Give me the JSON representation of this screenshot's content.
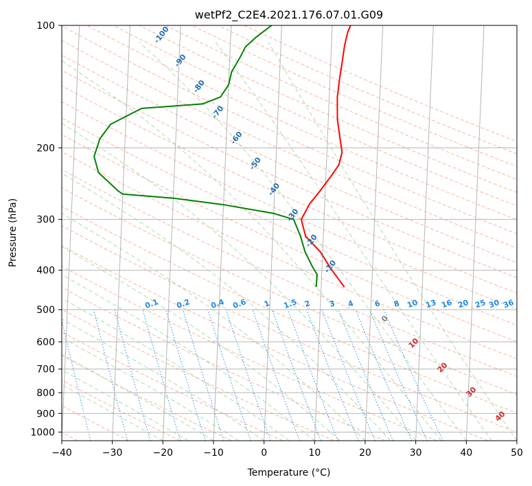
{
  "chart_data": {
    "type": "line",
    "title": "wetPf2_C2E4.2021.176.07.01.G09",
    "xlabel": "Temperature (°C)",
    "ylabel": "Pressure (hPa)",
    "xlim": [
      -40,
      50
    ],
    "ylim": [
      1050,
      100
    ],
    "x_ticks": [
      -40,
      -30,
      -20,
      -10,
      0,
      10,
      20,
      30,
      40,
      50
    ],
    "y_ticks": [
      100,
      200,
      300,
      400,
      500,
      600,
      700,
      800,
      900,
      1000
    ],
    "grid": true,
    "series": [
      {
        "name": "temperature",
        "color": "#ff0000",
        "points": [
          [
            14.6,
            440
          ],
          [
            12,
            400
          ],
          [
            9.5,
            360
          ],
          [
            6.5,
            330
          ],
          [
            5.5,
            300
          ],
          [
            7,
            275
          ],
          [
            9,
            255
          ],
          [
            11,
            235
          ],
          [
            12.5,
            220
          ],
          [
            13,
            205
          ],
          [
            12.5,
            190
          ],
          [
            11.8,
            170
          ],
          [
            11.6,
            150
          ],
          [
            11.9,
            135
          ],
          [
            12.3,
            122
          ],
          [
            12.6,
            112
          ],
          [
            13.1,
            104
          ],
          [
            13.6,
            100
          ]
        ]
      },
      {
        "name": "dewpoint",
        "color": "#008000",
        "points": [
          [
            9,
            440
          ],
          [
            9.1,
            410
          ],
          [
            8,
            390
          ],
          [
            6.5,
            360
          ],
          [
            5.5,
            330
          ],
          [
            4,
            300
          ],
          [
            0,
            290
          ],
          [
            -10,
            276
          ],
          [
            -20,
            266
          ],
          [
            -30,
            260
          ],
          [
            -31,
            255
          ],
          [
            -35,
            230
          ],
          [
            -36,
            210
          ],
          [
            -35,
            190
          ],
          [
            -33,
            175
          ],
          [
            -27,
            160
          ],
          [
            -15,
            156
          ],
          [
            -11.5,
            150
          ],
          [
            -10,
            140
          ],
          [
            -9.5,
            130
          ],
          [
            -8,
            120
          ],
          [
            -7,
            113
          ],
          [
            -5,
            107
          ],
          [
            -2,
            100
          ]
        ]
      }
    ],
    "dry_adiabat_labels": [
      "-100",
      "-90",
      "-80",
      "-70",
      "-60",
      "-50",
      "-40",
      "-30",
      "-20",
      "-10"
    ],
    "wet_adiabat_labels": [
      "0",
      "10",
      "20",
      "30",
      "40"
    ],
    "mixing_ratio_labels": [
      "0.1",
      "0.2",
      "0.4",
      "0.6",
      "1",
      "1.5",
      "2",
      "3",
      "4",
      "6",
      "8",
      "10",
      "13",
      "16",
      "20",
      "25",
      "30",
      "36"
    ],
    "colors": {
      "isotherm": "#b4b4b4",
      "dry_adiabat": "#f4a88e",
      "moist_adiabat": "#8fcf8f",
      "mixing_ratio": "#1e88e5",
      "dry_label": "#1f6fb4",
      "wet_label": "#d62728"
    }
  }
}
